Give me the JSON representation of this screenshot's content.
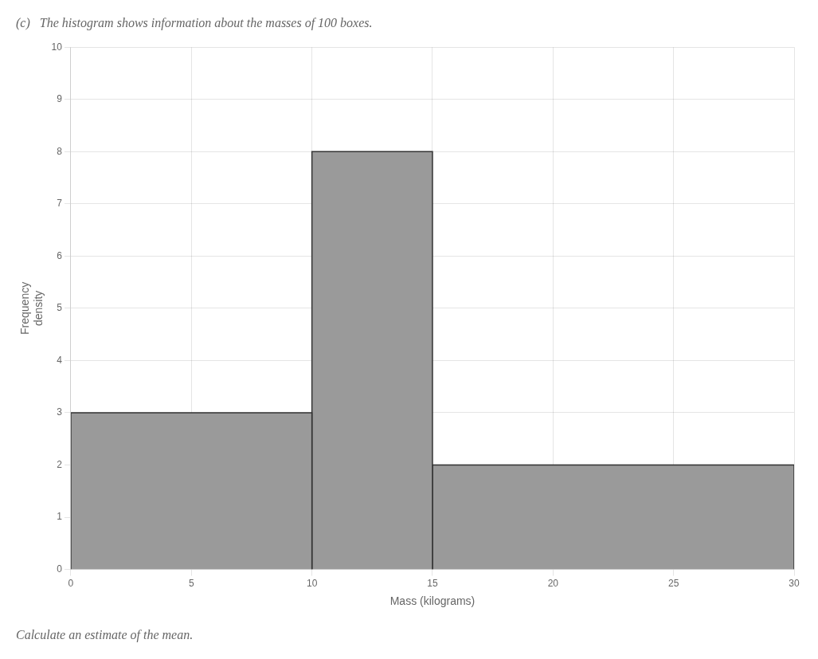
{
  "chart_data": {
    "type": "histogram",
    "title": "(c)   The histogram shows information about the masses of 100 boxes.",
    "subtitle": "Calculate an estimate of the mean.",
    "xlabel": "Mass (kilograms)",
    "ylabel": "Frequency\ndensity",
    "bins": [
      0,
      10,
      15,
      30
    ],
    "values": [
      3,
      8,
      2
    ],
    "color": "#9a9a9a",
    "xlim": [
      0,
      30
    ],
    "xticks": [
      0,
      5,
      10,
      15,
      20,
      25,
      30
    ],
    "ylim": [
      0,
      10
    ],
    "yticks": [
      0,
      1,
      2,
      3,
      4,
      5,
      6,
      7,
      8,
      9,
      10
    ],
    "grid": true
  }
}
